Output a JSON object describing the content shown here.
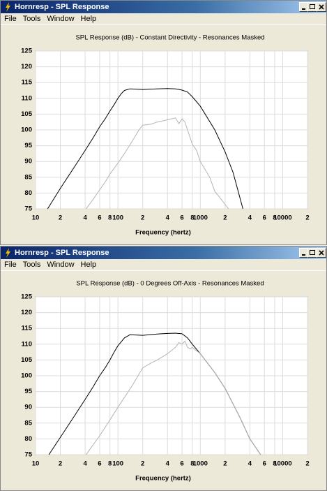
{
  "windows": [
    {
      "title": "Hornresp - SPL Response",
      "menu": [
        "File",
        "Tools",
        "Window",
        "Help"
      ],
      "chart_data": {
        "type": "line",
        "title": "SPL Response (dB) - Constant Directivity - Resonances Masked",
        "x_label": "Frequency (hertz)",
        "xlog": true,
        "grid": true,
        "xlim": [
          10,
          20000
        ],
        "ylim": [
          75,
          125
        ],
        "xticks": [
          10,
          {
            "value": 20,
            "label": "2"
          },
          {
            "value": 40,
            "label": "4"
          },
          {
            "value": 60,
            "label": "6"
          },
          {
            "value": 80,
            "label": "8"
          },
          100,
          {
            "value": 200,
            "label": "2"
          },
          {
            "value": 400,
            "label": "4"
          },
          {
            "value": 600,
            "label": "6"
          },
          {
            "value": 800,
            "label": "8"
          },
          1000,
          {
            "value": 2000,
            "label": "2"
          },
          {
            "value": 4000,
            "label": "4"
          },
          {
            "value": 6000,
            "label": "6"
          },
          {
            "value": 8000,
            "label": "8"
          },
          10000,
          {
            "value": 20000,
            "label": "2"
          }
        ],
        "yticks": [
          75,
          80,
          85,
          90,
          95,
          100,
          105,
          110,
          115,
          120,
          125
        ],
        "series": [
          {
            "color": "#000000",
            "x": [
              14,
              20,
              30,
              40,
              50,
              60,
              70,
              80,
              90,
              100,
              110,
              120,
              140,
              200,
              300,
              400,
              500,
              600,
              700,
              800,
              1000,
              1500,
              2000,
              2500,
              3290
            ],
            "values": [
              75,
              81.5,
              88.5,
              93.5,
              97.5,
              101,
              103.5,
              106,
              108,
              110,
              111.5,
              112.5,
              113,
              112.8,
              113,
              113.1,
              113,
              112.6,
              112,
              110.5,
              107.5,
              100,
              93,
              86.5,
              75
            ]
          },
          {
            "color": "#b4b4b4",
            "x": [
              41,
              50,
              60,
              70,
              80,
              100,
              120,
              150,
              180,
              200,
              250,
              300,
              400,
              500,
              550,
              600,
              650,
              700,
              800,
              900,
              1000,
              1300,
              1500,
              1800,
              2200
            ],
            "values": [
              75,
              78,
              81,
              83.5,
              86,
              89.5,
              92.5,
              96.5,
              100,
              101.5,
              101.8,
              102.5,
              103.2,
              103.8,
              102,
              103.5,
              102.5,
              100,
              95.5,
              93.5,
              90,
              85,
              80.5,
              78,
              75
            ]
          }
        ]
      }
    },
    {
      "title": "Hornresp - SPL Response",
      "menu": [
        "File",
        "Tools",
        "Window",
        "Help"
      ],
      "chart_data": {
        "type": "line",
        "title": "SPL Response (dB) - 0 Degrees Off-Axis - Resonances Masked",
        "x_label": "Frequency (hertz)",
        "xlog": true,
        "grid": true,
        "xlim": [
          10,
          20000
        ],
        "ylim": [
          75,
          125
        ],
        "xticks": [
          10,
          {
            "value": 20,
            "label": "2"
          },
          {
            "value": 40,
            "label": "4"
          },
          {
            "value": 60,
            "label": "6"
          },
          {
            "value": 80,
            "label": "8"
          },
          100,
          {
            "value": 200,
            "label": "2"
          },
          {
            "value": 400,
            "label": "4"
          },
          {
            "value": 600,
            "label": "6"
          },
          {
            "value": 800,
            "label": "8"
          },
          1000,
          {
            "value": 2000,
            "label": "2"
          },
          {
            "value": 4000,
            "label": "4"
          },
          {
            "value": 6000,
            "label": "6"
          },
          {
            "value": 8000,
            "label": "8"
          },
          10000,
          {
            "value": 20000,
            "label": "2"
          }
        ],
        "yticks": [
          75,
          80,
          85,
          90,
          95,
          100,
          105,
          110,
          115,
          120,
          125
        ],
        "series": [
          {
            "color": "#000000",
            "x": [
              14.5,
              20,
              30,
              40,
              50,
              60,
              70,
              80,
              90,
              100,
              120,
              140,
              200,
              300,
              400,
              500,
              600,
              700,
              800,
              1000,
              1500,
              2000,
              3000,
              4000,
              5400
            ],
            "values": [
              75,
              80.5,
              87.5,
              92.5,
              96.5,
              100,
              102.5,
              105,
              107.5,
              109.5,
              112,
              113,
              112.8,
              113.2,
              113.4,
              113.5,
              113.3,
              112,
              110,
              107,
              101,
              96,
              87,
              80,
              75
            ]
          },
          {
            "color": "#b4b4b4",
            "x": [
              41,
              60,
              80,
              100,
              150,
              200,
              250,
              300,
              400,
              500,
              550,
              600,
              650,
              700,
              750,
              800,
              1000,
              1500,
              2000,
              3000,
              4000,
              5400
            ],
            "values": [
              75,
              81,
              86,
              90,
              97,
              102.5,
              104,
              105,
              107,
              109,
              110.5,
              110,
              111,
              109,
              108.5,
              109,
              107,
              101,
              96,
              87,
              80,
              75
            ]
          }
        ]
      }
    }
  ]
}
